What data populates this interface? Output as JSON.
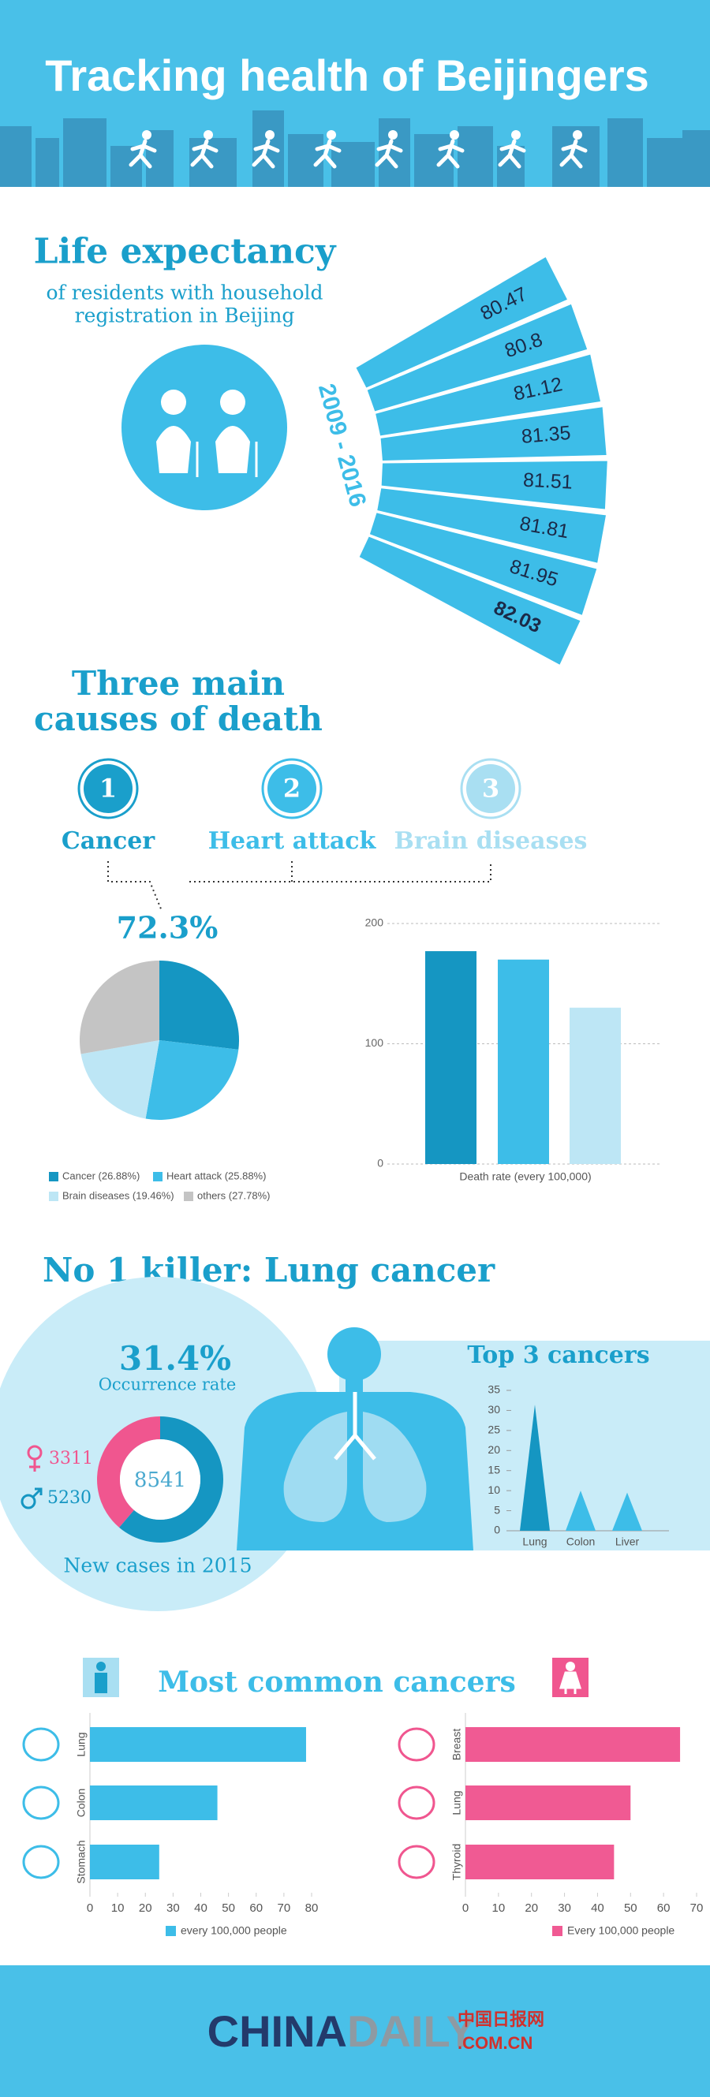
{
  "title": "Tracking health of Beijingers",
  "chart_data": [
    {
      "type": "fan",
      "title": "Life expectancy",
      "subtitle": [
        "of residents with household",
        "registration in Beijing"
      ],
      "annotation": "2009 - 2016",
      "values": [
        80.47,
        80.8,
        81.12,
        81.35,
        81.51,
        81.81,
        81.95,
        82.03
      ],
      "color": "#3dbde8"
    },
    {
      "type": "pie",
      "title": [
        "Three main",
        "causes of death"
      ],
      "ranks": [
        {
          "rank": 1,
          "name": "Cancer",
          "color": "#1a9fcb"
        },
        {
          "rank": 2,
          "name": "Heart attack",
          "color": "#3dbde8"
        },
        {
          "rank": 3,
          "name": "Brain diseases",
          "color": "#a9dff2"
        }
      ],
      "annotation": "72.3%",
      "categories": [
        "Cancer (26.88%)",
        "Heart attack (25.88%)",
        "Brain diseases (19.46%)",
        "others (27.78%)"
      ],
      "values": [
        26.88,
        25.88,
        19.46,
        27.78
      ],
      "colors": [
        "#1596c2",
        "#3dbde8",
        "#bde6f5",
        "#c4c4c4"
      ]
    },
    {
      "type": "bar",
      "xlabel": "Death rate (every 100,000)",
      "values": [
        177,
        170,
        130
      ],
      "colors": [
        "#1596c2",
        "#3dbde8",
        "#bde6f5"
      ],
      "ylim": [
        0,
        200
      ],
      "yticks": [
        0,
        100,
        200
      ],
      "grid": true
    },
    {
      "type": "donut",
      "title": "No 1 killer: Lung cancer",
      "annotation": "31.4%",
      "annotation_label": "Occurrence rate",
      "values": [
        3311,
        5230
      ],
      "colors": [
        "#f0568f",
        "#1596c2"
      ],
      "total": 8541,
      "caption": "New cases in 2015"
    },
    {
      "type": "triangle",
      "title": "Top 3 cancers",
      "categories": [
        "Lung",
        "Colon",
        "Liver"
      ],
      "values": [
        31.4,
        10,
        9.5
      ],
      "colors": [
        "#1596c2",
        "#3dbde8",
        "#3dbde8"
      ],
      "ylim": [
        0,
        35
      ],
      "yticks": [
        0,
        5,
        10,
        15,
        20,
        25,
        30,
        35
      ]
    },
    {
      "type": "hbar",
      "title": "Most common cancers",
      "categories": [
        "Lung",
        "Colon",
        "Stomach"
      ],
      "values": [
        78,
        46,
        25
      ],
      "color": "#3dbde8",
      "xlim": [
        0,
        80
      ],
      "xticks": [
        0,
        10,
        20,
        30,
        40,
        50,
        60,
        70,
        80
      ],
      "legend": "every 100,000 people"
    },
    {
      "type": "hbar",
      "categories": [
        "Breast",
        "Lung",
        "Thyroid"
      ],
      "values": [
        65,
        50,
        45
      ],
      "color": "#f05a93",
      "xlim": [
        0,
        70
      ],
      "xticks": [
        0,
        10,
        20,
        30,
        40,
        50,
        60,
        70
      ],
      "legend": "Every 100,000 people"
    }
  ],
  "footer": {
    "brand": [
      "CHINA",
      "DAILY"
    ],
    "cn": "中国日报网",
    "domain": ".COM.CN"
  }
}
